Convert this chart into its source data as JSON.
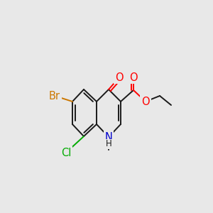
{
  "background_color": "#e8e8e8",
  "bond_color": "#1a1a1a",
  "atom_colors": {
    "O": "#ff0000",
    "N": "#0000cc",
    "Br": "#cc7700",
    "Cl": "#00aa00",
    "C": "#1a1a1a",
    "H": "#1a1a1a"
  },
  "bond_width": 1.4,
  "font_size_atoms": 10.5,
  "font_size_sub": 8.5
}
